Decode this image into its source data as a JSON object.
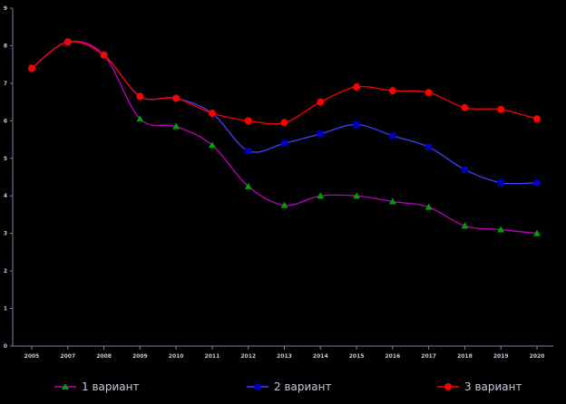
{
  "chart_data": {
    "type": "line",
    "title": "",
    "xlabel": "",
    "ylabel": "",
    "categories": [
      "2005",
      "2007",
      "2008",
      "2009",
      "2010",
      "2011",
      "2012",
      "2013",
      "2014",
      "2015",
      "2016",
      "2017",
      "2018",
      "2019",
      "2020"
    ],
    "ylim": [
      0,
      9
    ],
    "yticks": [
      "0",
      "1",
      "2",
      "3",
      "4",
      "5",
      "6",
      "7",
      "8",
      "9"
    ],
    "grid": false,
    "legend_position": "bottom",
    "series": [
      {
        "name": "1 вариант",
        "color": "#00a000",
        "line_color": "#c000c0",
        "marker": "triangle",
        "values": [
          7.4,
          8.1,
          7.75,
          6.05,
          5.85,
          5.35,
          4.25,
          3.75,
          4.0,
          4.0,
          3.85,
          3.7,
          3.2,
          3.1,
          3.0
        ]
      },
      {
        "name": "2 вариант",
        "color": "#0000c0",
        "line_color": "#4040ff",
        "marker": "square",
        "values": [
          7.4,
          8.1,
          7.75,
          6.65,
          6.6,
          6.2,
          5.2,
          5.4,
          5.65,
          5.9,
          5.6,
          5.3,
          4.7,
          4.35,
          4.35
        ]
      },
      {
        "name": "3 вариант",
        "color": "#ff0000",
        "line_color": "#ff0000",
        "marker": "circle",
        "values": [
          7.4,
          8.1,
          7.75,
          6.65,
          6.6,
          6.2,
          6.0,
          5.95,
          6.5,
          6.9,
          6.8,
          6.75,
          6.35,
          6.3,
          6.05
        ]
      }
    ]
  }
}
